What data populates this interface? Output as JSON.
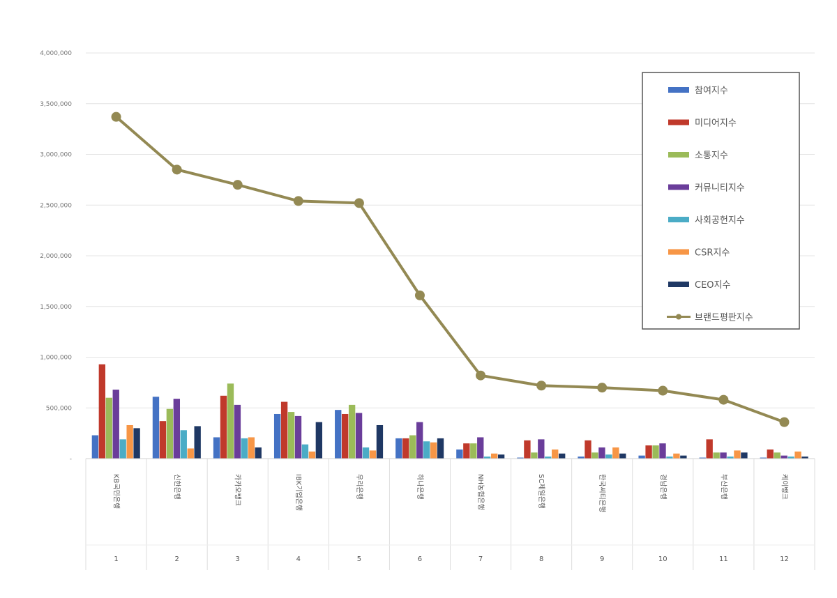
{
  "chart_data": {
    "type": "bar",
    "title": "",
    "xlabel": "",
    "ylabel": "",
    "ylim": [
      0,
      4000000
    ],
    "yticks": [
      0,
      500000,
      1000000,
      1500000,
      2000000,
      2500000,
      3000000,
      3500000,
      4000000
    ],
    "ytick_labels": [
      "-",
      "500,000",
      "1,000,000",
      "1,500,000",
      "2,000,000",
      "2,500,000",
      "3,000,000",
      "3,500,000",
      "4,000,000"
    ],
    "grid": true,
    "legend_position": "top-right",
    "categories": [
      "KB국민은행",
      "신한은행",
      "카카오뱅크",
      "IBK기업은행",
      "우리은행",
      "하나은행",
      "NH농협은행",
      "SC제일은행",
      "한국씨티은행",
      "경남은행",
      "부산은행",
      "케이뱅크"
    ],
    "ranks": [
      "1",
      "2",
      "3",
      "4",
      "5",
      "6",
      "7",
      "8",
      "9",
      "10",
      "11",
      "12"
    ],
    "series": [
      {
        "name": "참여지수",
        "kind": "bar",
        "color": "#4472c4",
        "values": [
          230000,
          610000,
          210000,
          440000,
          480000,
          200000,
          90000,
          10000,
          20000,
          30000,
          10000,
          10000
        ]
      },
      {
        "name": "미디어지수",
        "kind": "bar",
        "color": "#c0392b",
        "values": [
          930000,
          370000,
          620000,
          560000,
          440000,
          200000,
          150000,
          180000,
          180000,
          130000,
          190000,
          90000
        ]
      },
      {
        "name": "소통지수",
        "kind": "bar",
        "color": "#9bbb59",
        "values": [
          600000,
          490000,
          740000,
          460000,
          530000,
          230000,
          150000,
          60000,
          60000,
          130000,
          60000,
          60000
        ]
      },
      {
        "name": "커뮤니티지수",
        "kind": "bar",
        "color": "#6a3d9a",
        "values": [
          680000,
          590000,
          530000,
          420000,
          450000,
          360000,
          210000,
          190000,
          110000,
          150000,
          60000,
          30000
        ]
      },
      {
        "name": "사회공헌지수",
        "kind": "bar",
        "color": "#4bacc6",
        "values": [
          190000,
          280000,
          200000,
          140000,
          110000,
          170000,
          20000,
          20000,
          40000,
          20000,
          20000,
          20000
        ]
      },
      {
        "name": "CSR지수",
        "kind": "bar",
        "color": "#f79646",
        "values": [
          330000,
          100000,
          210000,
          70000,
          80000,
          160000,
          50000,
          90000,
          110000,
          50000,
          80000,
          70000
        ]
      },
      {
        "name": "CEO지수",
        "kind": "bar",
        "color": "#1f3864",
        "values": [
          300000,
          320000,
          110000,
          360000,
          330000,
          200000,
          40000,
          50000,
          50000,
          30000,
          60000,
          20000
        ]
      },
      {
        "name": "브랜드평판지수",
        "kind": "line",
        "color": "#938953",
        "values": [
          3370000,
          2850000,
          2700000,
          2540000,
          2520000,
          1610000,
          820000,
          720000,
          700000,
          670000,
          580000,
          360000
        ]
      }
    ]
  }
}
